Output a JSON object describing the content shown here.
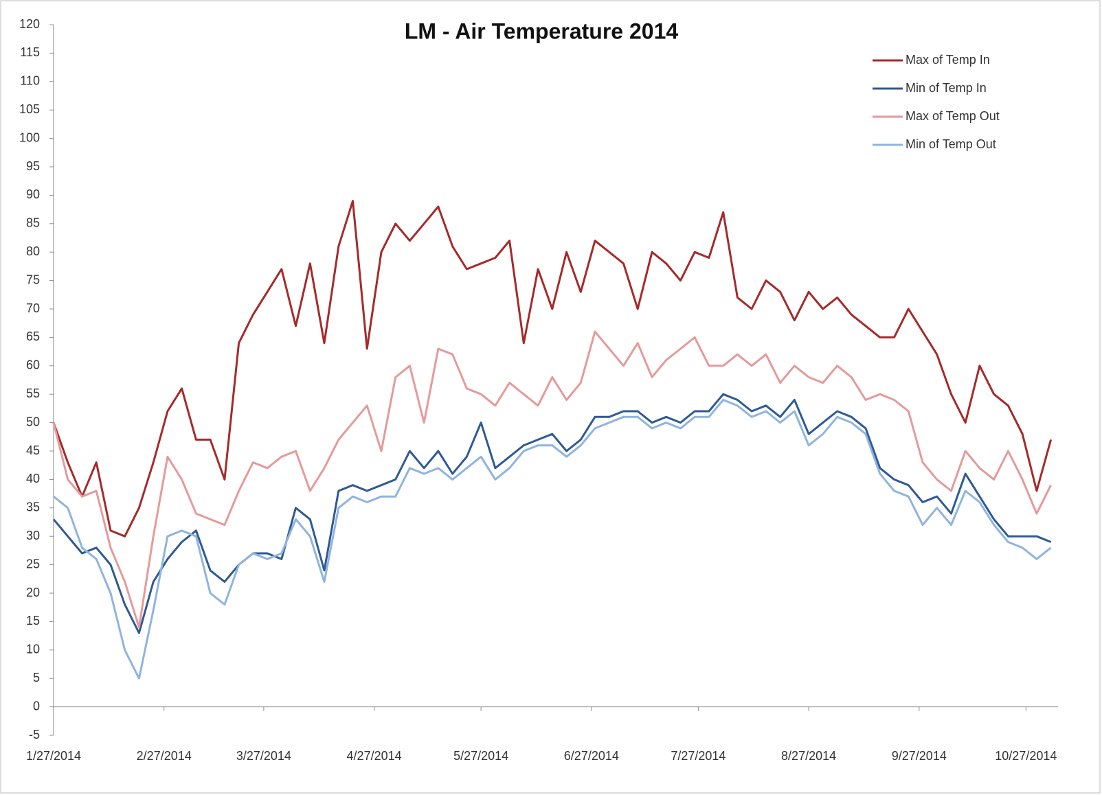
{
  "chart_data": {
    "type": "line",
    "title": "LM - Air Temperature 2014",
    "x": [
      "1/27/2014",
      "1/31/2014",
      "2/4/2014",
      "2/8/2014",
      "2/12/2014",
      "2/16/2014",
      "2/20/2014",
      "2/24/2014",
      "2/28/2014",
      "3/4/2014",
      "3/8/2014",
      "3/12/2014",
      "3/16/2014",
      "3/20/2014",
      "3/24/2014",
      "3/28/2014",
      "4/1/2014",
      "4/5/2014",
      "4/9/2014",
      "4/13/2014",
      "4/17/2014",
      "4/21/2014",
      "4/25/2014",
      "4/29/2014",
      "5/3/2014",
      "5/7/2014",
      "5/11/2014",
      "5/15/2014",
      "5/19/2014",
      "5/23/2014",
      "5/27/2014",
      "5/31/2014",
      "6/4/2014",
      "6/8/2014",
      "6/12/2014",
      "6/16/2014",
      "6/20/2014",
      "6/24/2014",
      "6/28/2014",
      "7/2/2014",
      "7/6/2014",
      "7/10/2014",
      "7/14/2014",
      "7/18/2014",
      "7/22/2014",
      "7/26/2014",
      "7/30/2014",
      "8/3/2014",
      "8/7/2014",
      "8/11/2014",
      "8/15/2014",
      "8/19/2014",
      "8/23/2014",
      "8/27/2014",
      "8/31/2014",
      "9/4/2014",
      "9/8/2014",
      "9/12/2014",
      "9/16/2014",
      "9/20/2014",
      "9/24/2014",
      "9/28/2014",
      "10/2/2014",
      "10/6/2014",
      "10/10/2014",
      "10/14/2014",
      "10/18/2014",
      "10/22/2014",
      "10/26/2014",
      "10/30/2014",
      "11/3/2014"
    ],
    "series": [
      {
        "name": "Max of Temp In",
        "color": "#a52a2a",
        "values": [
          50,
          43,
          37,
          43,
          31,
          30,
          35,
          43,
          52,
          56,
          47,
          47,
          40,
          64,
          69,
          73,
          77,
          67,
          78,
          64,
          81,
          89,
          63,
          80,
          85,
          82,
          85,
          88,
          81,
          77,
          78,
          79,
          82,
          64,
          77,
          70,
          80,
          73,
          82,
          80,
          78,
          70,
          80,
          78,
          75,
          80,
          79,
          87,
          72,
          70,
          75,
          73,
          68,
          73,
          70,
          72,
          69,
          67,
          65,
          65,
          70,
          66,
          62,
          55,
          50,
          60,
          55,
          53,
          48,
          38,
          47
        ]
      },
      {
        "name": "Min of Temp In",
        "color": "#2e5a94",
        "values": [
          33,
          30,
          27,
          28,
          25,
          18,
          13,
          22,
          26,
          29,
          31,
          24,
          22,
          25,
          27,
          27,
          26,
          35,
          33,
          24,
          38,
          39,
          38,
          39,
          40,
          45,
          42,
          45,
          41,
          44,
          50,
          42,
          44,
          46,
          47,
          48,
          45,
          47,
          51,
          51,
          52,
          52,
          50,
          51,
          50,
          52,
          52,
          55,
          54,
          52,
          53,
          51,
          54,
          48,
          50,
          52,
          51,
          49,
          42,
          40,
          39,
          36,
          37,
          34,
          41,
          37,
          33,
          30,
          30,
          30,
          29
        ]
      },
      {
        "name": "Max of Temp Out",
        "color": "#e59a9a",
        "values": [
          50,
          40,
          37,
          38,
          28,
          22,
          14,
          30,
          44,
          40,
          34,
          33,
          32,
          38,
          43,
          42,
          44,
          45,
          38,
          42,
          47,
          50,
          53,
          45,
          58,
          60,
          50,
          63,
          62,
          56,
          55,
          53,
          57,
          55,
          53,
          58,
          54,
          57,
          66,
          63,
          60,
          64,
          58,
          61,
          63,
          65,
          60,
          60,
          62,
          60,
          62,
          57,
          60,
          58,
          57,
          60,
          58,
          54,
          55,
          54,
          52,
          43,
          40,
          38,
          45,
          42,
          40,
          45,
          40,
          34,
          39
        ]
      },
      {
        "name": "Min of Temp Out",
        "color": "#8fb4de",
        "values": [
          37,
          35,
          28,
          26,
          20,
          10,
          5,
          17,
          30,
          31,
          30,
          20,
          18,
          25,
          27,
          26,
          27,
          33,
          30,
          22,
          35,
          37,
          36,
          37,
          37,
          42,
          41,
          42,
          40,
          42,
          44,
          40,
          42,
          45,
          46,
          46,
          44,
          46,
          49,
          50,
          51,
          51,
          49,
          50,
          49,
          51,
          51,
          54,
          53,
          51,
          52,
          50,
          52,
          46,
          48,
          51,
          50,
          48,
          41,
          38,
          37,
          32,
          35,
          32,
          38,
          36,
          32,
          29,
          28,
          26,
          28
        ]
      }
    ],
    "xlim": [
      "1/27/2014",
      "11/5/2014"
    ],
    "xticks": [
      "1/27/2014",
      "2/27/2014",
      "3/27/2014",
      "4/27/2014",
      "5/27/2014",
      "6/27/2014",
      "7/27/2014",
      "8/27/2014",
      "9/27/2014",
      "10/27/2014"
    ],
    "ylim": [
      -5,
      120
    ],
    "yticks": [
      -5,
      0,
      5,
      10,
      15,
      20,
      25,
      30,
      35,
      40,
      45,
      50,
      55,
      60,
      65,
      70,
      75,
      80,
      85,
      90,
      95,
      100,
      105,
      110,
      115,
      120
    ],
    "legend": "upper right"
  }
}
